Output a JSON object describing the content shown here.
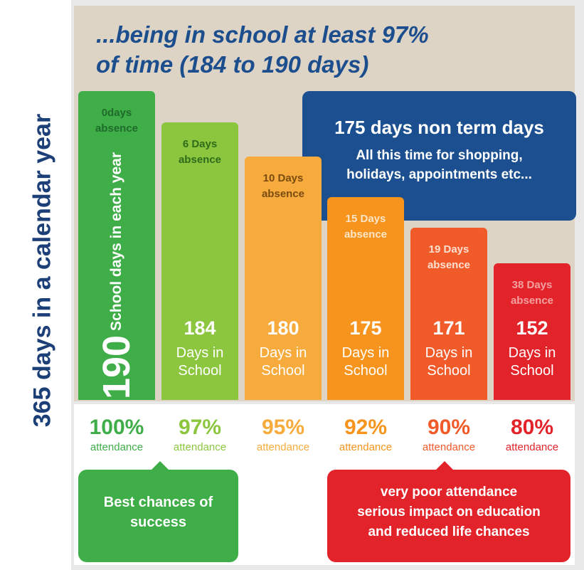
{
  "side_label": "365 days in a calendar year",
  "title": [
    "...being in school at least 97%",
    "of time (184 to 190 days)"
  ],
  "callout": {
    "title": "175 days non term days",
    "body": [
      "All this time for shopping,",
      "holidays, appointments etc..."
    ]
  },
  "columns": [
    {
      "absence": "0days absence",
      "days": "190",
      "days_label": "School days in each year",
      "attendance": "100%",
      "attendance_label": "attendance"
    },
    {
      "absence": "6 Days absence",
      "days": "184",
      "days_label": "Days in School",
      "attendance": "97%",
      "attendance_label": "attendance"
    },
    {
      "absence": "10 Days absence",
      "days": "180",
      "days_label": "Days in School",
      "attendance": "95%",
      "attendance_label": "attendance"
    },
    {
      "absence": "15 Days absence",
      "days": "175",
      "days_label": "Days in School",
      "attendance": "92%",
      "attendance_label": "attendance"
    },
    {
      "absence": "19 Days absence",
      "days": "171",
      "days_label": "Days in School",
      "attendance": "90%",
      "attendance_label": "attendance"
    },
    {
      "absence": "38 Days absence",
      "days": "152",
      "days_label": "Days in School",
      "attendance": "80%",
      "attendance_label": "attendance"
    }
  ],
  "notes": [
    {
      "lines": [
        "Best chances of",
        "success"
      ]
    },
    {
      "lines": [
        "very poor attendance",
        "serious impact on education",
        "and reduced life chances"
      ]
    }
  ]
}
